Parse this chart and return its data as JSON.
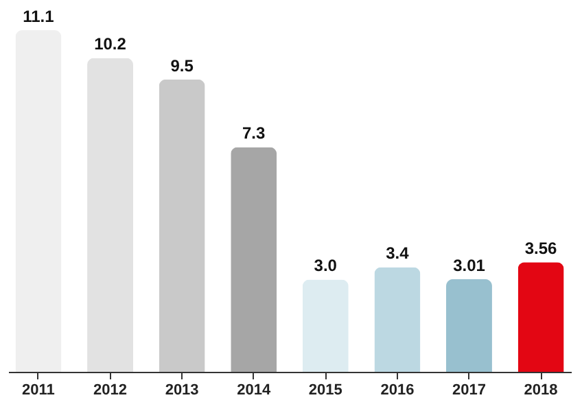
{
  "chart_data": {
    "type": "bar",
    "categories": [
      "2011",
      "2012",
      "2013",
      "2014",
      "2015",
      "2016",
      "2017",
      "2018"
    ],
    "values": [
      11.1,
      10.2,
      9.5,
      7.3,
      3.0,
      3.4,
      3.01,
      3.56
    ],
    "colors": [
      "#efefef",
      "#e2e2e2",
      "#c9c9c9",
      "#a6a6a6",
      "#ddecf1",
      "#bcd8e2",
      "#98c0cf",
      "#e30613"
    ],
    "value_labels": [
      "11.1",
      "10.2",
      "9.5",
      "7.3",
      "3.0",
      "3.4",
      "3.01",
      "3.56"
    ]
  }
}
